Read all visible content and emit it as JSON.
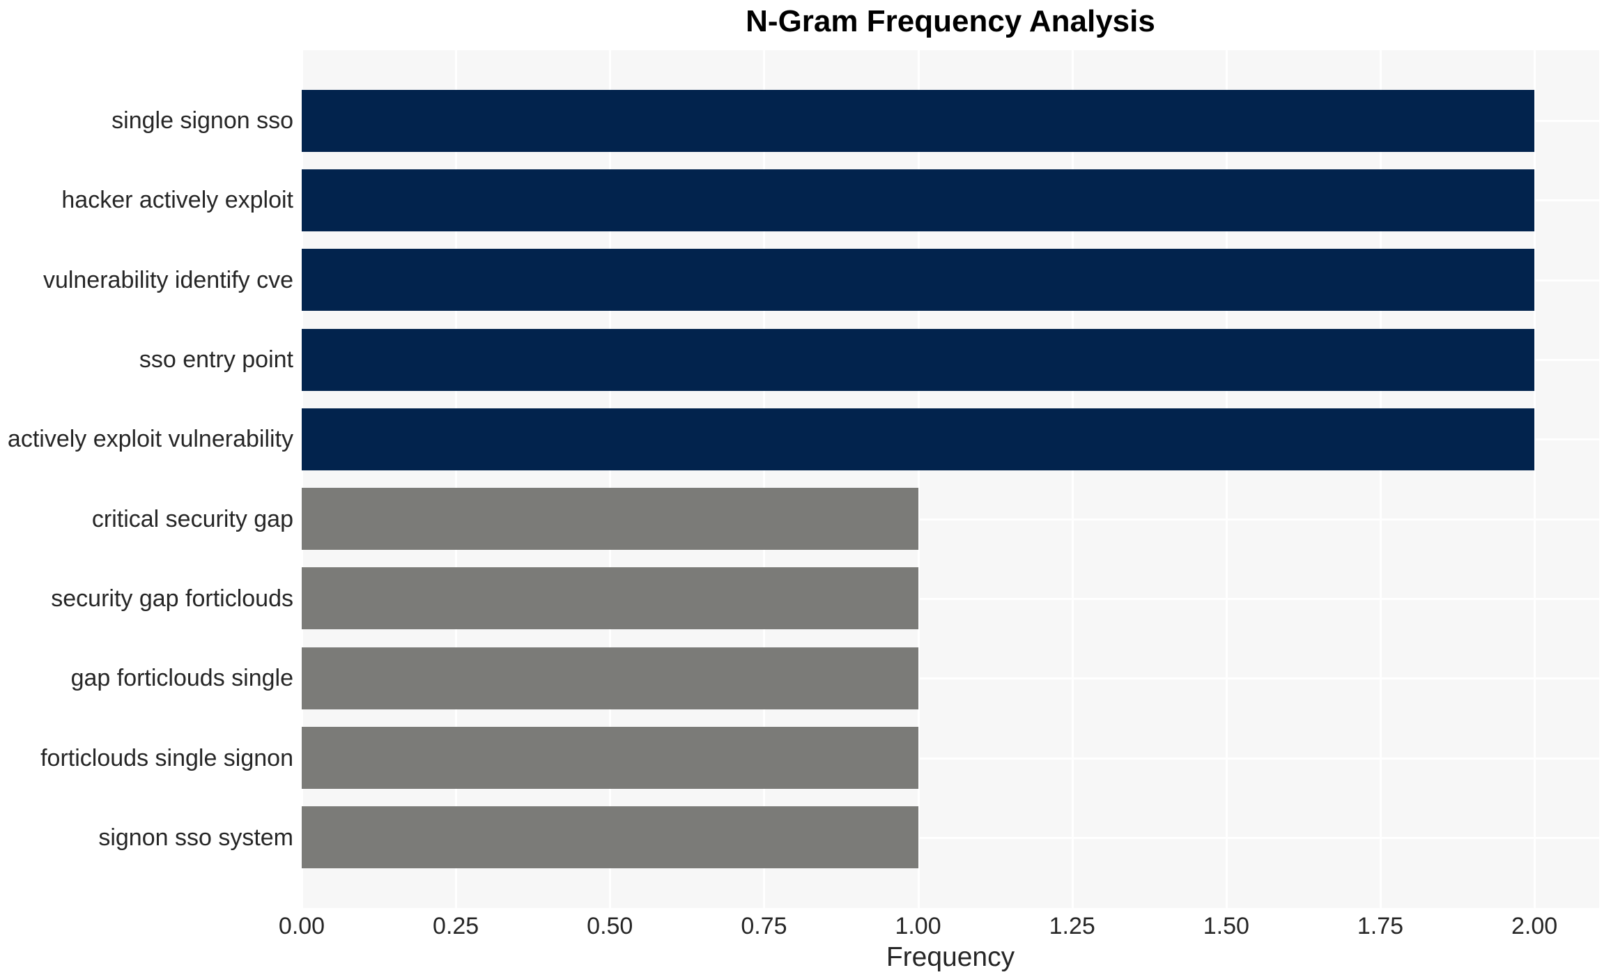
{
  "chart_data": {
    "type": "bar",
    "orientation": "horizontal",
    "title": "N-Gram Frequency Analysis",
    "xlabel": "Frequency",
    "ylabel": "",
    "categories": [
      "single signon sso",
      "hacker actively exploit",
      "vulnerability identify cve",
      "sso entry point",
      "actively exploit vulnerability",
      "critical security gap",
      "security gap forticlouds",
      "gap forticlouds single",
      "forticlouds single signon",
      "signon sso system"
    ],
    "values": [
      2,
      2,
      2,
      2,
      2,
      1,
      1,
      1,
      1,
      1
    ],
    "bar_colors": [
      "#02234d",
      "#02234d",
      "#02234d",
      "#02234d",
      "#02234d",
      "#7b7b78",
      "#7b7b78",
      "#7b7b78",
      "#7b7b78",
      "#7b7b78"
    ],
    "xlim": [
      0,
      2.105
    ],
    "xticks": [
      0,
      0.25,
      0.5,
      0.75,
      1.0,
      1.25,
      1.5,
      1.75,
      2.0
    ],
    "xtick_labels": [
      "0.00",
      "0.25",
      "0.50",
      "0.75",
      "1.00",
      "1.25",
      "1.50",
      "1.75",
      "2.00"
    ],
    "grid": true,
    "legend": false,
    "colors": {
      "plot_background": "#f7f7f7",
      "figure_background": "#ffffff",
      "gridline": "#ffffff",
      "tick_text": "#262626",
      "title_text": "#000000"
    }
  }
}
